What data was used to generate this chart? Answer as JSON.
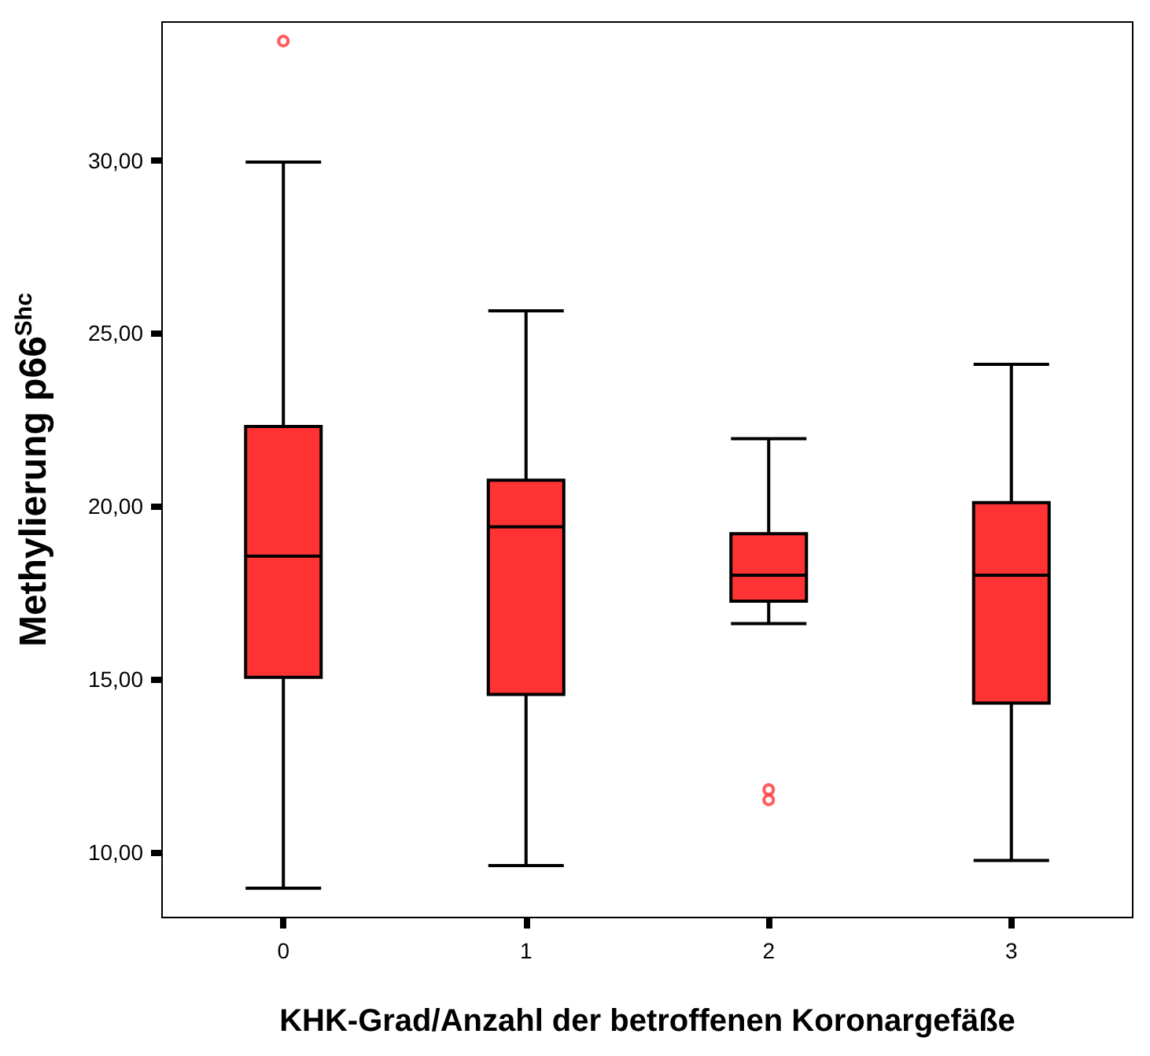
{
  "chart_data": {
    "type": "box",
    "xlabel": "KHK-Grad/Anzahl der betroffenen Koronargefäße",
    "ylabel": "Methylierung p66$^{Shc}$",
    "categories": [
      "0",
      "1",
      "2",
      "3"
    ],
    "series": [
      {
        "color": "#ff3333",
        "boxes": [
          {
            "low": 8.95,
            "q1": 15.05,
            "median": 18.55,
            "q3": 22.3,
            "high": 29.95,
            "outliers": [
              33.45
            ]
          },
          {
            "low": 9.6,
            "q1": 14.55,
            "median": 19.4,
            "q3": 20.75,
            "high": 25.65
          },
          {
            "low": 16.6,
            "q1": 17.25,
            "median": 18.0,
            "q3": 19.2,
            "high": 21.95,
            "outliers": [
              11.8,
              11.5
            ]
          },
          {
            "low": 9.75,
            "q1": 14.3,
            "median": 18.0,
            "q3": 20.1,
            "high": 24.1
          }
        ]
      }
    ],
    "ylim": [
      8.1,
      34
    ],
    "yticks": [
      {
        "value": 10,
        "label": "10,00"
      },
      {
        "value": 15,
        "label": "15,00"
      },
      {
        "value": 20,
        "label": "20,00"
      },
      {
        "value": 25,
        "label": "25,00"
      },
      {
        "value": 30,
        "label": "30,00"
      }
    ],
    "grid": false
  }
}
